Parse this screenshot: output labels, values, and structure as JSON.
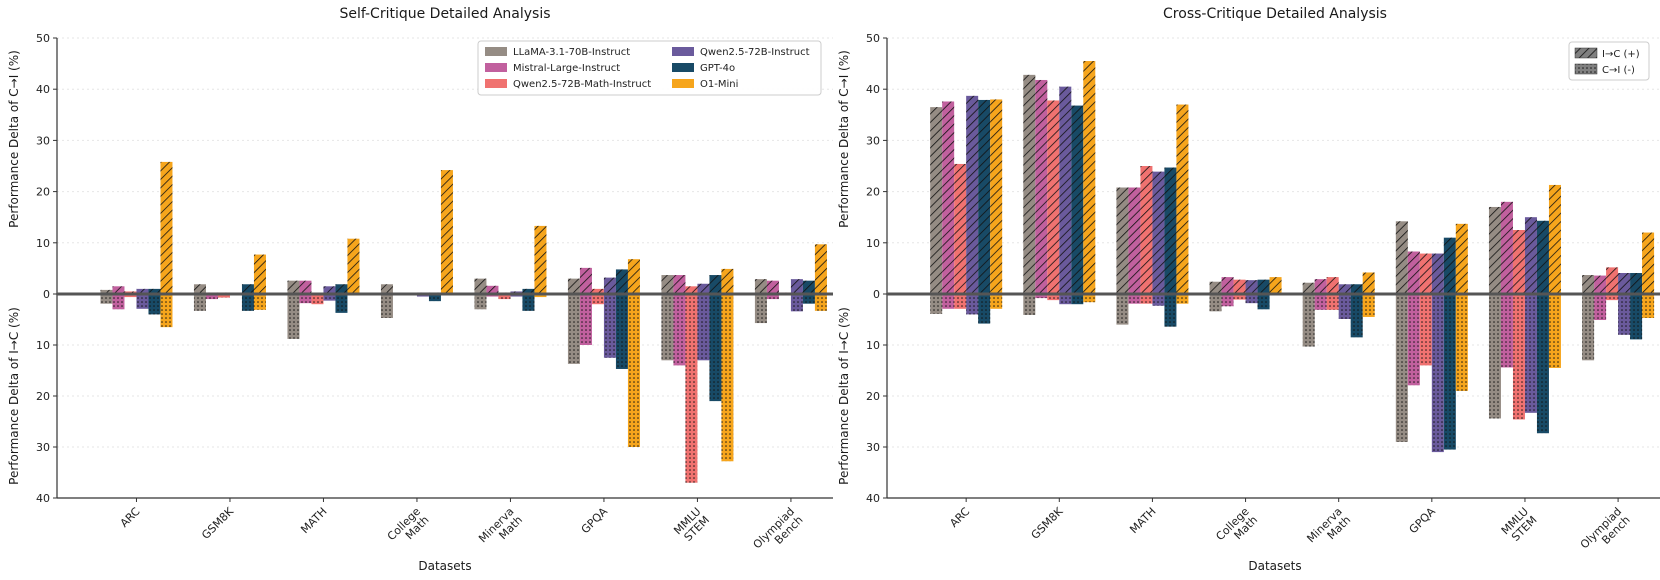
{
  "chart_data": [
    {
      "type": "bar",
      "title": "Self-Critique Detailed Analysis",
      "xlabel": "Datasets",
      "ylabel_top": "Performance Delta of C→I (%)",
      "ylabel_bottom": "Performance Delta of I→C (%)",
      "yticks_top": [
        "50",
        "40",
        "30",
        "20",
        "10",
        "0"
      ],
      "yticks_bottom": [
        "10",
        "20",
        "30",
        "40"
      ],
      "ylim_top": [
        0,
        50
      ],
      "ylim_bottom": [
        0,
        40
      ],
      "legend_position": "top-right",
      "categories": [
        "ARC",
        "GSM8K",
        "MATH",
        "College\nMath",
        "Minerva\nMath",
        "GPQA",
        "MMLU\nSTEM",
        "Olympiad\nBench"
      ],
      "series": [
        {
          "name": "LLaMA-3.1-70B-Instruct",
          "color": "#958c84",
          "up": [
            0.8,
            1.9,
            2.6,
            1.9,
            3.0,
            3.0,
            3.7,
            2.9
          ],
          "down": [
            1.9,
            3.3,
            8.8,
            4.7,
            3.0,
            13.7,
            13.0,
            5.7
          ]
        },
        {
          "name": "Mistral-Large-Instruct",
          "color": "#c1609e",
          "up": [
            1.5,
            0.3,
            2.6,
            0.2,
            1.6,
            5.1,
            3.7,
            2.6
          ],
          "down": [
            3.0,
            1.0,
            1.8,
            0.2,
            0.5,
            10.0,
            14.0,
            1.0
          ]
        },
        {
          "name": "Qwen2.5-72B-Math-Instruct",
          "color": "#f07270",
          "up": [
            0.5,
            0.3,
            0.2,
            0.2,
            0.3,
            1.0,
            1.5,
            0.3
          ],
          "down": [
            0.6,
            0.7,
            2.0,
            0.2,
            1.0,
            2.0,
            37.0,
            0.3
          ]
        },
        {
          "name": "Qwen2.5-72B-Instruct",
          "color": "#6a5a9c",
          "up": [
            1.0,
            0.2,
            1.5,
            0.3,
            0.5,
            3.2,
            2.0,
            2.9
          ],
          "down": [
            2.9,
            0.2,
            1.3,
            0.5,
            0.5,
            12.5,
            13.0,
            3.4
          ]
        },
        {
          "name": "GPT-4o",
          "color": "#184a66",
          "up": [
            1.0,
            1.9,
            1.9,
            0.3,
            1.0,
            4.8,
            3.7,
            2.6
          ],
          "down": [
            4.0,
            3.3,
            3.7,
            1.4,
            3.3,
            14.7,
            21.0,
            1.9
          ]
        },
        {
          "name": "O1-Mini",
          "color": "#f6a51c",
          "up": [
            25.8,
            7.7,
            10.8,
            24.2,
            13.3,
            6.8,
            4.9,
            9.7
          ],
          "down": [
            6.5,
            3.1,
            0.3,
            0.2,
            0.6,
            30.0,
            32.8,
            3.3
          ]
        }
      ]
    },
    {
      "type": "bar",
      "title": "Cross-Critique Detailed Analysis",
      "xlabel": "Datasets",
      "ylabel_top": "Performance Delta of C→I (%)",
      "ylabel_bottom": "Performance Delta of I→C (%)",
      "yticks_top": [
        "50",
        "40",
        "30",
        "20",
        "10",
        "0"
      ],
      "yticks_bottom": [
        "10",
        "20",
        "30",
        "40"
      ],
      "ylim_top": [
        0,
        50
      ],
      "ylim_bottom": [
        0,
        40
      ],
      "legend_position": "top-right",
      "legend": [
        "I→C (+)",
        "C→I (-)"
      ],
      "categories": [
        "ARC",
        "GSM8K",
        "MATH",
        "College\nMath",
        "Minerva\nMath",
        "GPQA",
        "MMLU\nSTEM",
        "Olympiad\nBench"
      ],
      "series": [
        {
          "name": "LLaMA-3.1-70B-Instruct",
          "color": "#958c84",
          "up": [
            36.5,
            42.8,
            20.8,
            2.4,
            2.2,
            14.2,
            17.0,
            3.7
          ],
          "down": [
            3.9,
            4.1,
            6.0,
            3.4,
            10.3,
            29.0,
            24.4,
            13.0
          ]
        },
        {
          "name": "Mistral-Large-Instruct",
          "color": "#c1609e",
          "up": [
            37.6,
            41.8,
            20.8,
            3.3,
            2.9,
            8.3,
            18.0,
            3.6
          ],
          "down": [
            2.9,
            0.8,
            1.9,
            2.4,
            3.1,
            17.9,
            14.4,
            5.1
          ]
        },
        {
          "name": "Qwen2.5-72B-Math-Instruct",
          "color": "#f07270",
          "up": [
            25.4,
            37.8,
            25.0,
            2.8,
            3.3,
            7.9,
            12.5,
            5.2
          ],
          "down": [
            2.9,
            1.2,
            1.9,
            1.1,
            3.1,
            14.0,
            24.6,
            1.2
          ]
        },
        {
          "name": "Qwen2.5-72B-Instruct",
          "color": "#6a5a9c",
          "up": [
            38.7,
            40.5,
            23.9,
            2.7,
            1.9,
            7.9,
            15.0,
            4.1
          ],
          "down": [
            4.0,
            2.0,
            2.3,
            1.8,
            4.9,
            31.0,
            23.3,
            8.0
          ]
        },
        {
          "name": "GPT-4o",
          "color": "#184a66",
          "up": [
            37.9,
            36.8,
            24.7,
            2.8,
            1.9,
            11.0,
            14.3,
            4.1
          ],
          "down": [
            5.8,
            2.0,
            6.4,
            3.0,
            8.5,
            30.5,
            27.3,
            8.9
          ]
        },
        {
          "name": "O1-Mini",
          "color": "#f6a51c",
          "up": [
            38.0,
            45.5,
            37.0,
            3.3,
            4.2,
            13.7,
            21.3,
            12.0
          ],
          "down": [
            2.9,
            1.6,
            1.9,
            0.2,
            4.5,
            19.0,
            14.5,
            4.7
          ]
        }
      ]
    }
  ]
}
